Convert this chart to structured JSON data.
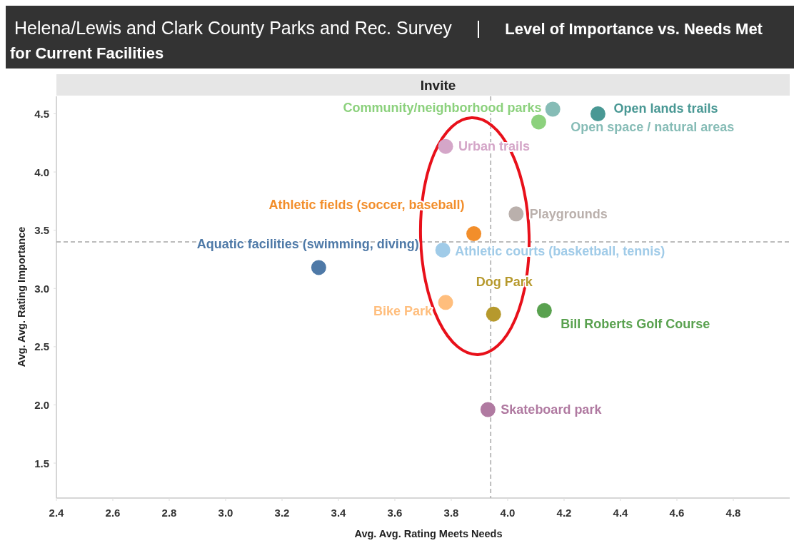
{
  "chart_data": {
    "type": "scatter",
    "title": "Helena/Lewis and Clark County Parks and Rec. Survey | Level of Importance vs. Needs Met for Current Facilities",
    "xlabel": "Avg. Avg. Rating Meets Needs",
    "ylabel": "Avg. Avg. Rating Importance",
    "annotations": [
      "Invite"
    ],
    "xlim": [
      2.4,
      5.0
    ],
    "xticks": [
      2.4,
      2.6,
      2.8,
      {
        "value": 3,
        "label": "3.0"
      },
      3.2,
      3.4,
      3.6,
      3.8,
      {
        "value": 4,
        "label": "4.0"
      },
      4.2,
      4.4,
      4.6,
      4.8
    ],
    "ylim": [
      1.2,
      4.65
    ],
    "yticks": [
      1.5,
      {
        "value": 2,
        "label": "2.0"
      },
      2.5,
      {
        "value": 3,
        "label": "3.0"
      },
      3.5,
      {
        "value": 4,
        "label": "4.0"
      },
      4.5
    ],
    "marker": "circle",
    "ref_lines": [
      {
        "axis": "x",
        "value": 3.94,
        "line_style": "dashed",
        "color": "#a6a6a6"
      },
      {
        "axis": "y",
        "value": 3.4,
        "line_style": "dashed",
        "color": "#a6a6a6"
      }
    ],
    "series": [
      {
        "name": "Aquatic facilities (swimming, diving)",
        "color": "#4e79a7",
        "x": [
          3.33
        ],
        "values": [
          3.18
        ]
      },
      {
        "name": "Athletic courts (basketball, tennis)",
        "color": "#a0cbe8",
        "x": [
          3.77
        ],
        "values": [
          3.33
        ]
      },
      {
        "name": "Athletic fields (soccer, baseball)",
        "color": "#f28e2b",
        "x": [
          3.88
        ],
        "values": [
          3.47
        ]
      },
      {
        "name": "Bike Park",
        "color": "#ffbe7d",
        "x": [
          3.78
        ],
        "values": [
          2.88
        ]
      },
      {
        "name": "Bill Roberts Golf Course",
        "color": "#59a14f",
        "x": [
          4.13
        ],
        "values": [
          2.81
        ]
      },
      {
        "name": "Community/neighborhood parks",
        "color": "#8cd17d",
        "x": [
          4.11
        ],
        "values": [
          4.43
        ]
      },
      {
        "name": "Dog Park",
        "color": "#b6992d",
        "x": [
          3.95
        ],
        "values": [
          2.78
        ]
      },
      {
        "name": "Open lands trails",
        "color": "#499894",
        "x": [
          4.32
        ],
        "values": [
          4.5
        ]
      },
      {
        "name": "Open space / natural areas",
        "color": "#86bcb6",
        "x": [
          4.16
        ],
        "values": [
          4.54
        ]
      },
      {
        "name": "Playgrounds",
        "color": "#bab0ac",
        "x": [
          4.03
        ],
        "values": [
          3.64
        ]
      },
      {
        "name": "Skateboard park",
        "color": "#b07aa1",
        "x": [
          3.93
        ],
        "values": [
          1.96
        ]
      },
      {
        "name": "Urban trails",
        "color": "#d4a6c8",
        "x": [
          3.78
        ],
        "values": [
          4.22
        ]
      }
    ]
  }
}
